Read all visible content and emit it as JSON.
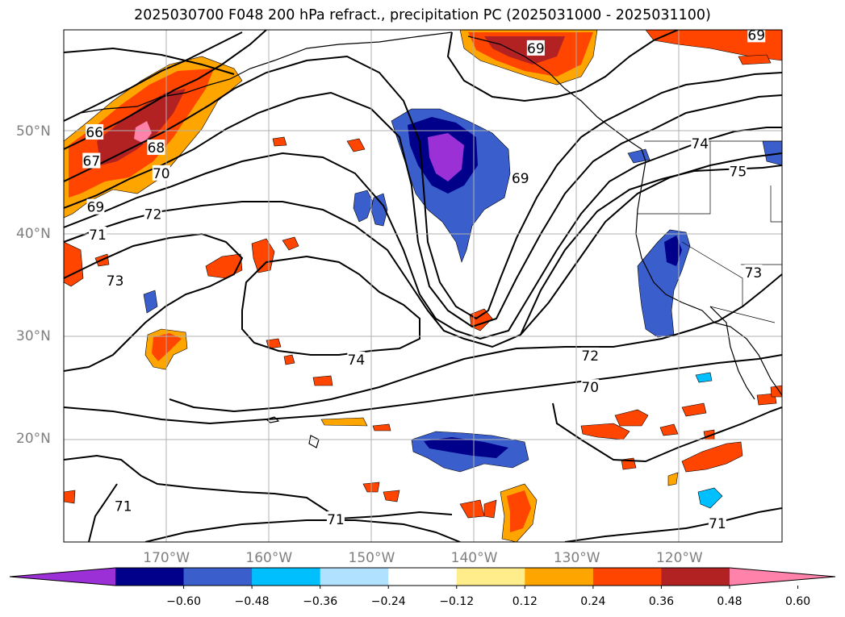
{
  "title": "2025030700 F048 200 hPa refract., precipitation PC (2025031000 - 2025031100)",
  "lat_labels": [
    {
      "text": "50°N",
      "lat": 50
    },
    {
      "text": "40°N",
      "lat": 40
    },
    {
      "text": "30°N",
      "lat": 30
    },
    {
      "text": "20°N",
      "lat": 20
    }
  ],
  "lon_labels": [
    {
      "text": "170°W",
      "lon": -170
    },
    {
      "text": "160°W",
      "lon": -160
    },
    {
      "text": "150°W",
      "lon": -150
    },
    {
      "text": "140°W",
      "lon": -140
    },
    {
      "text": "130°W",
      "lon": -130
    },
    {
      "text": "120°W",
      "lon": -120
    }
  ],
  "colorbar": {
    "labels": [
      "−0.60",
      "−0.48",
      "−0.36",
      "−0.24",
      "−0.12",
      "0.12",
      "0.24",
      "0.36",
      "0.48",
      "0.60"
    ],
    "colors": [
      "#9b30d6",
      "#00008b",
      "#3a5fcd",
      "#00bfff",
      "#b0e2ff",
      "#ffffff",
      "#ffec8b",
      "#ffa500",
      "#ff4500",
      "#b22222",
      "#ff82ab"
    ]
  },
  "contour_labels": [
    {
      "text": "66",
      "lon": -177.0,
      "lat": 50.0
    },
    {
      "text": "67",
      "lon": -177.3,
      "lat": 47.2
    },
    {
      "text": "68",
      "lon": -171.0,
      "lat": 48.5
    },
    {
      "text": "69",
      "lon": -176.9,
      "lat": 42.7
    },
    {
      "text": "70",
      "lon": -170.5,
      "lat": 46.0
    },
    {
      "text": "71",
      "lon": -176.7,
      "lat": 40.0
    },
    {
      "text": "72",
      "lon": -171.3,
      "lat": 42.0
    },
    {
      "text": "73",
      "lon": -175.0,
      "lat": 35.5
    },
    {
      "text": "74",
      "lon": -151.5,
      "lat": 27.8
    },
    {
      "text": "72",
      "lon": -128.7,
      "lat": 28.2
    },
    {
      "text": "70",
      "lon": -128.7,
      "lat": 25.1
    },
    {
      "text": "71",
      "lon": -153.5,
      "lat": 12.2
    },
    {
      "text": "71",
      "lon": -174.2,
      "lat": 13.5
    },
    {
      "text": "71",
      "lon": -116.3,
      "lat": 11.8
    },
    {
      "text": "69",
      "lon": -135.5,
      "lat": 45.5
    },
    {
      "text": "69",
      "lon": -134.0,
      "lat": 58.2
    },
    {
      "text": "69",
      "lon": -112.5,
      "lat": 59.5
    },
    {
      "text": "74",
      "lon": -118.0,
      "lat": 48.9
    },
    {
      "text": "75",
      "lon": -114.3,
      "lat": 46.2
    },
    {
      "text": "73",
      "lon": -112.8,
      "lat": 36.3
    }
  ]
}
